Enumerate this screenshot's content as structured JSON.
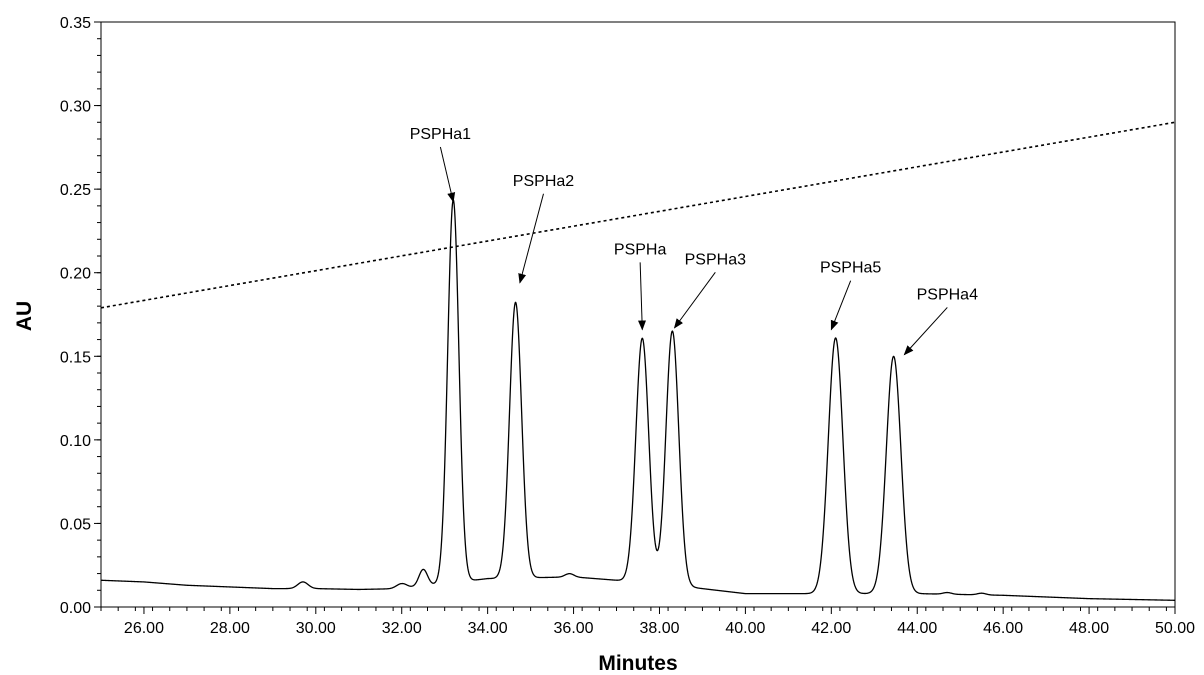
{
  "chart_data": {
    "type": "line",
    "xlabel": "Minutes",
    "ylabel": "AU",
    "xlim": [
      25,
      50
    ],
    "ylim": [
      0,
      0.35
    ],
    "xticks": [
      "26.00",
      "28.00",
      "30.00",
      "32.00",
      "34.00",
      "36.00",
      "38.00",
      "40.00",
      "42.00",
      "44.00",
      "46.00",
      "48.00",
      "50.00"
    ],
    "yticks": [
      "0.00",
      "0.05",
      "0.10",
      "0.15",
      "0.20",
      "0.25",
      "0.30",
      "0.35"
    ],
    "grid": false,
    "series": [
      {
        "style": "solid",
        "color": "#000000",
        "baseline": [
          [
            25,
            0.016
          ],
          [
            26,
            0.015
          ],
          [
            27,
            0.013
          ],
          [
            28,
            0.012
          ],
          [
            29,
            0.011
          ],
          [
            30,
            0.011
          ],
          [
            31,
            0.0105
          ],
          [
            32,
            0.011
          ],
          [
            34,
            0.017
          ],
          [
            36,
            0.018
          ],
          [
            38,
            0.014
          ],
          [
            40,
            0.008
          ],
          [
            42,
            0.008
          ],
          [
            44,
            0.008
          ],
          [
            46,
            0.007
          ],
          [
            48,
            0.005
          ],
          [
            50,
            0.004
          ]
        ],
        "peaks": [
          {
            "t": 29.7,
            "h": 0.004,
            "w": 0.12
          },
          {
            "t": 32.0,
            "h": 0.003,
            "w": 0.12
          },
          {
            "t": 32.5,
            "h": 0.01,
            "w": 0.1
          },
          {
            "t": 33.2,
            "h": 0.229,
            "w": 0.13
          },
          {
            "t": 34.65,
            "h": 0.165,
            "w": 0.14
          },
          {
            "t": 35.9,
            "h": 0.002,
            "w": 0.1
          },
          {
            "t": 37.6,
            "h": 0.146,
            "w": 0.15
          },
          {
            "t": 38.3,
            "h": 0.152,
            "w": 0.15
          },
          {
            "t": 42.1,
            "h": 0.153,
            "w": 0.17
          },
          {
            "t": 43.45,
            "h": 0.142,
            "w": 0.17
          },
          {
            "t": 44.7,
            "h": 0.001,
            "w": 0.1
          },
          {
            "t": 45.5,
            "h": 0.001,
            "w": 0.1
          }
        ]
      },
      {
        "style": "dotted",
        "color": "#000000",
        "points": [
          [
            25,
            0.179
          ],
          [
            50,
            0.29
          ]
        ]
      }
    ],
    "annotations": [
      {
        "text": "PSPHa1",
        "x": 33.2,
        "y": 0.2425,
        "label_x": 32.9,
        "label_y": 0.28
      },
      {
        "text": "PSPHa2",
        "x": 34.75,
        "y": 0.194,
        "label_x": 35.3,
        "label_y": 0.252
      },
      {
        "text": "PSPHa",
        "x": 37.6,
        "y": 0.166,
        "label_x": 37.55,
        "label_y": 0.211
      },
      {
        "text": "PSPHa3",
        "x": 38.35,
        "y": 0.167,
        "label_x": 39.3,
        "label_y": 0.205
      },
      {
        "text": "PSPHa5",
        "x": 42.0,
        "y": 0.166,
        "label_x": 42.45,
        "label_y": 0.2
      },
      {
        "text": "PSPHa4",
        "x": 43.7,
        "y": 0.151,
        "label_x": 44.7,
        "label_y": 0.184
      }
    ]
  }
}
